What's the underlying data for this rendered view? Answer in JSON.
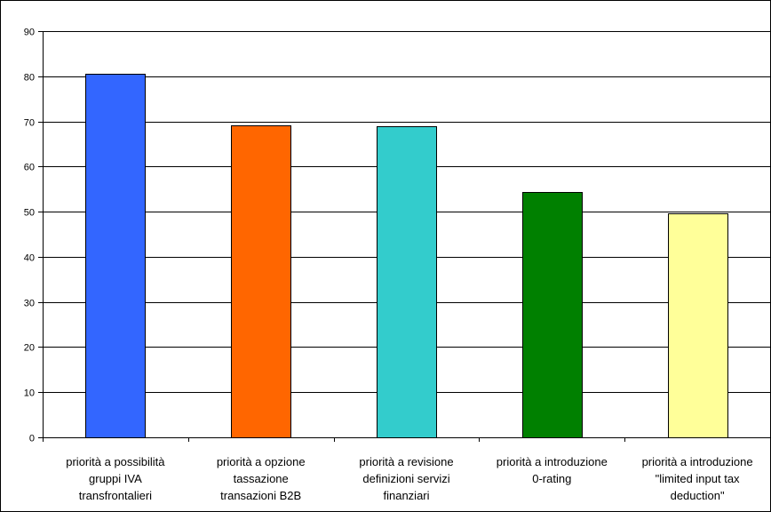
{
  "chart_data": {
    "type": "bar",
    "categories": [
      [
        "priorità a possibilità",
        "gruppi IVA",
        "transfrontalieri"
      ],
      [
        "priorità a opzione",
        "tassazione",
        "transazioni B2B"
      ],
      [
        "priorità a revisione",
        "definizioni servizi",
        "finanziari"
      ],
      [
        "priorità a introduzione",
        "0-rating"
      ],
      [
        "priorità a introduzione",
        "\"limited input tax",
        "deduction\""
      ]
    ],
    "values": [
      80.6,
      69.1,
      68.9,
      54.4,
      49.6
    ],
    "colors": [
      "#3366FF",
      "#FF6600",
      "#33CCCC",
      "#008000",
      "#FFFF99"
    ],
    "title": "",
    "xlabel": "",
    "ylabel": "",
    "ylim": [
      0,
      90
    ],
    "ytick_step": 10,
    "grid": true,
    "legend": "none"
  }
}
